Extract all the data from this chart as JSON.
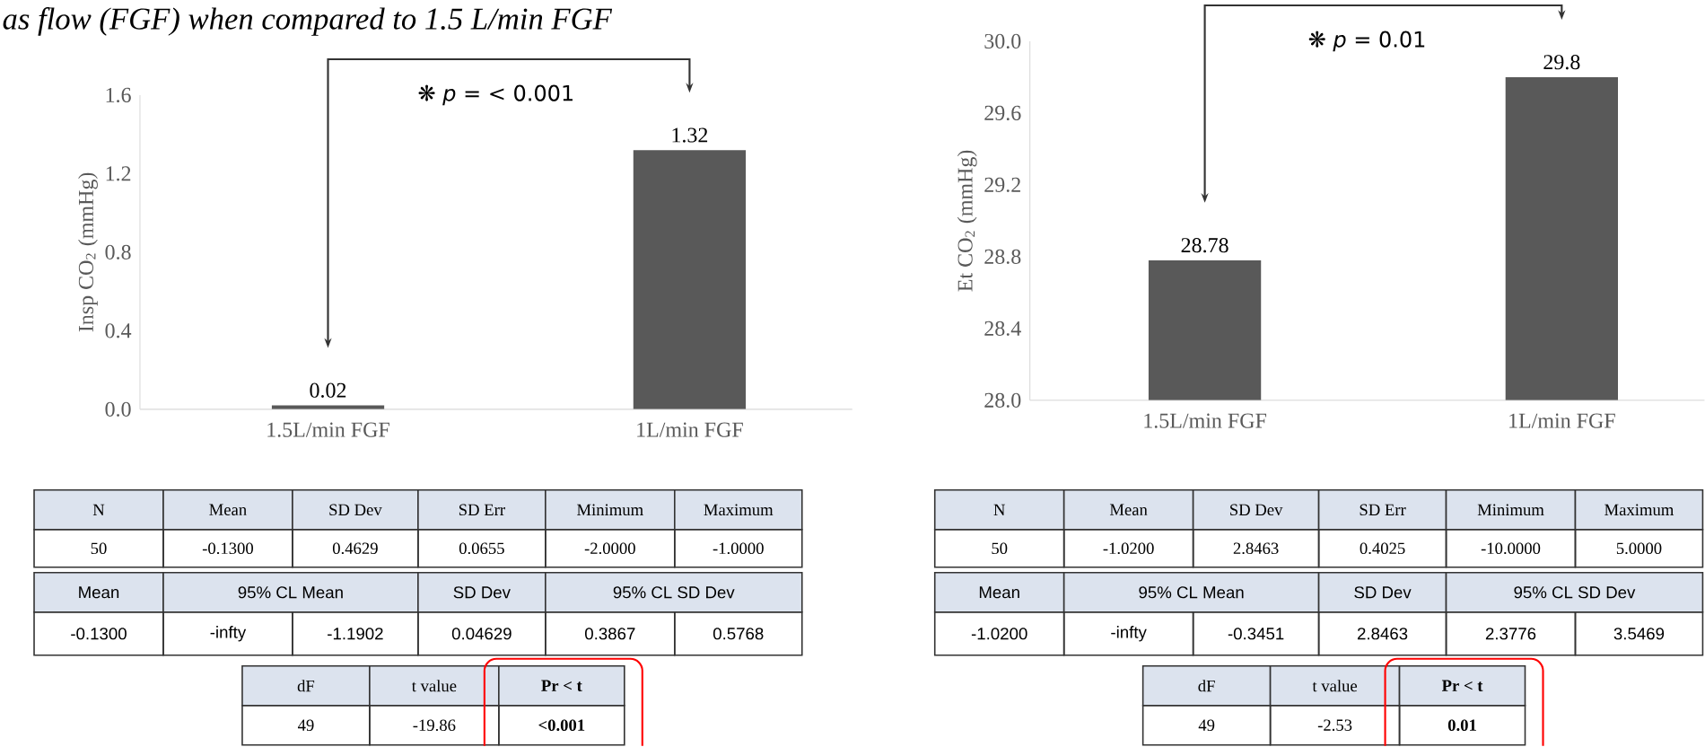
{
  "chart_data": [
    {
      "type": "bar",
      "title": "as flow (FGF) when compared to 1.5 L/min FGF",
      "ylabel": "Insp CO$_{2}$ (mmHg)",
      "categories": [
        "1.5L/min FGF",
        "1L/min FGF"
      ],
      "values": [
        0.02,
        1.32
      ],
      "color": "#595959",
      "data_labels": true,
      "ylim": [
        0,
        1.6
      ],
      "yticks": [
        {
          "value": 0,
          "label": "0.0"
        },
        0.4,
        0.8,
        1.2,
        1.6
      ],
      "annotations": [
        "❋ *p* = < 0.001",
        "N",
        "Mean",
        "SD Dev",
        "SD Err",
        "Minimum",
        "Maximum",
        "50",
        "-0.1300",
        "0.4629",
        "0.0655",
        "-2.0000",
        "-1.0000",
        "Mean",
        "95% CL Mean",
        "SD Dev",
        "95% CL SD Dev",
        "-0.1300",
        "-infty",
        "-1.1902",
        "0.04629",
        "0.3867",
        "0.5768",
        "dF",
        "t value",
        "Pr < t",
        "49",
        "-19.86",
        "<0.001"
      ]
    },
    {
      "type": "bar",
      "ylabel": "Et CO$_{2}$ (mmHg)",
      "categories": [
        "1.5L/min FGF",
        "1L/min FGF"
      ],
      "values": [
        28.78,
        29.8
      ],
      "color": "#595959",
      "data_labels": true,
      "ylim": [
        28,
        30
      ],
      "yticks": [
        {
          "value": 28,
          "label": "28.0"
        },
        28.4,
        28.8,
        29.2,
        29.6,
        {
          "value": 30,
          "label": "30.0"
        }
      ],
      "annotations": [
        "❋ *p* = 0.01",
        "N",
        "Mean",
        "SD Dev",
        "SD Err",
        "Minimum",
        "Maximum",
        "50",
        "-1.0200",
        "2.8463",
        "0.4025",
        "-10.0000",
        "5.0000",
        "Mean",
        "95% CL Mean",
        "SD Dev",
        "95% CL SD Dev",
        "-1.0200",
        "-infty",
        "-0.3451",
        "2.8463",
        "2.3776",
        "3.5469",
        "dF",
        "t value",
        "Pr < t",
        "49",
        "-2.53",
        "0.01"
      ]
    }
  ]
}
